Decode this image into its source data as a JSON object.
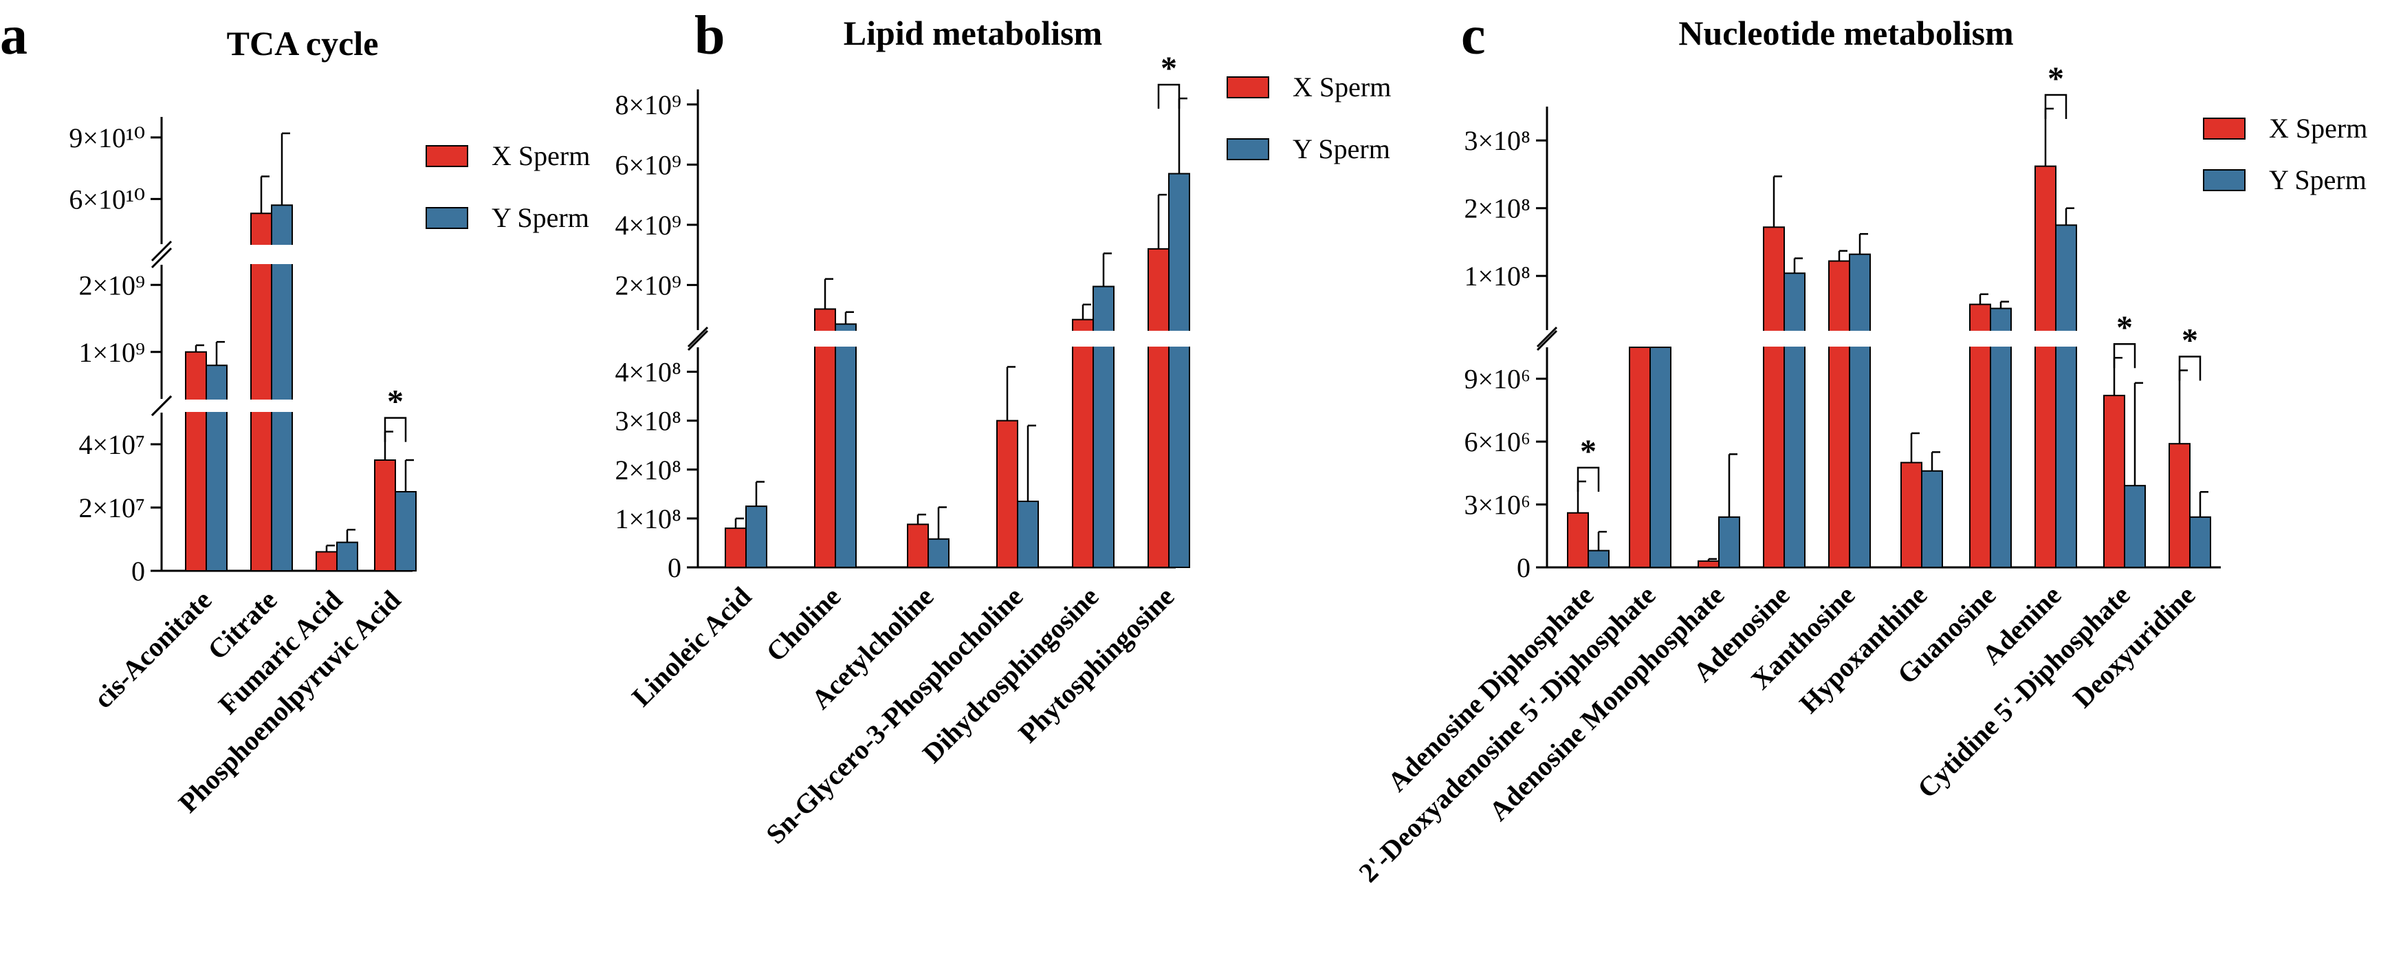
{
  "legend": {
    "x_label": "X Sperm",
    "y_label": "Y Sperm"
  },
  "colors": {
    "x_sperm": "#E03229",
    "y_sperm": "#3C739C",
    "axis": "#000000"
  },
  "significance_mark": "*",
  "chart_data": [
    {
      "panel_letter": "a",
      "title": "TCA cycle",
      "type": "bar",
      "y_axis_break": true,
      "segments": [
        {
          "range": [
            0,
            50000000
          ],
          "ticks": [
            "0",
            "2×10⁷",
            "4×10⁷"
          ],
          "tick_values": [
            0,
            20000000,
            40000000
          ]
        },
        {
          "range": [
            300000000,
            2300000000
          ],
          "ticks": [
            "1×10⁹",
            "2×10⁹"
          ],
          "tick_values": [
            1000000000,
            2000000000
          ]
        },
        {
          "range": [
            38000000000,
            100000000000
          ],
          "ticks": [
            "6×10¹⁰",
            "9×10¹⁰"
          ],
          "tick_values": [
            60000000000,
            90000000000
          ]
        }
      ],
      "categories": [
        "cis-Aconitate",
        "Citrate",
        "Fumaric Acid",
        "Phosphoenolpyruvic Acid"
      ],
      "series": [
        {
          "name": "X Sperm",
          "values": [
            1000000000,
            53000000000,
            6000000,
            35000000
          ],
          "errors": [
            100000000,
            18000000000,
            2000000,
            9000000
          ]
        },
        {
          "name": "Y Sperm",
          "values": [
            800000000,
            57000000000,
            9000000,
            25000000
          ],
          "errors": [
            350000000,
            35000000000,
            4000000,
            10000000
          ]
        }
      ],
      "significance": [
        3
      ]
    },
    {
      "panel_letter": "b",
      "title": "Lipid metabolism",
      "type": "bar",
      "y_axis_break": true,
      "segments": [
        {
          "range": [
            0,
            450000000
          ],
          "ticks": [
            "0",
            "1×10⁸",
            "2×10⁸",
            "3×10⁸",
            "4×10⁸"
          ],
          "tick_values": [
            0,
            100000000,
            200000000,
            300000000,
            400000000
          ]
        },
        {
          "range": [
            500000000,
            8500000000
          ],
          "ticks": [
            "2×10⁹",
            "4×10⁹",
            "6×10⁹",
            "8×10⁹"
          ],
          "tick_values": [
            2000000000,
            4000000000,
            6000000000,
            8000000000
          ]
        }
      ],
      "categories": [
        "Linoleic Acid",
        "Choline",
        "Acetylcholine",
        "Sn-Glycero-3-Phosphocholine",
        "Dihydrosphingosine",
        "Phytosphingosine"
      ],
      "series": [
        {
          "name": "X Sperm",
          "values": [
            80000000,
            1200000000,
            88000000,
            300000000,
            850000000,
            3200000000
          ],
          "errors": [
            20000000,
            1000000000,
            20000000,
            110000000,
            500000000,
            1800000000
          ]
        },
        {
          "name": "Y Sperm",
          "values": [
            125000000,
            700000000,
            58000000,
            135000000,
            1950000000,
            5700000000
          ],
          "errors": [
            50000000,
            400000000,
            65000000,
            155000000,
            1100000000,
            2500000000
          ]
        }
      ],
      "significance": [
        5
      ]
    },
    {
      "panel_letter": "c",
      "title": "Nucleotide metabolism",
      "type": "bar",
      "y_axis_break": true,
      "segments": [
        {
          "range": [
            0,
            10500000
          ],
          "ticks": [
            "0",
            "3×10⁶",
            "6×10⁶",
            "9×10⁶"
          ],
          "tick_values": [
            0,
            3000000,
            6000000,
            9000000
          ]
        },
        {
          "range": [
            20000000,
            350000000
          ],
          "ticks": [
            "1×10⁸",
            "2×10⁸",
            "3×10⁸"
          ],
          "tick_values": [
            100000000,
            200000000,
            300000000
          ]
        }
      ],
      "categories": [
        "Adenosine Diphosphate",
        "2'-Deoxyadenosine 5'-Diphosphate",
        "Adenosine Monophosphate",
        "Adenosine",
        "Xanthosine",
        "Hypoxanthine",
        "Guanosine",
        "Adenine",
        "Cytidine 5'-Diphosphate",
        "Deoxyuridine"
      ],
      "series": [
        {
          "name": "X Sperm",
          "values": [
            2600000,
            15000000,
            300000,
            172000000,
            122000000,
            5000000,
            58000000,
            262000000,
            8200000,
            5900000
          ],
          "errors": [
            1500000,
            0,
            100000,
            75000000,
            15000000,
            1400000,
            15000000,
            85000000,
            1800000,
            3500000
          ]
        },
        {
          "name": "Y Sperm",
          "values": [
            800000,
            15000000,
            2400000,
            104000000,
            132000000,
            4600000,
            52000000,
            175000000,
            3900000,
            2400000
          ],
          "errors": [
            900000,
            0,
            3000000,
            22000000,
            30000000,
            900000,
            10000000,
            25000000,
            4900000,
            1200000
          ]
        }
      ],
      "significance": [
        0,
        7,
        8,
        9
      ]
    }
  ]
}
